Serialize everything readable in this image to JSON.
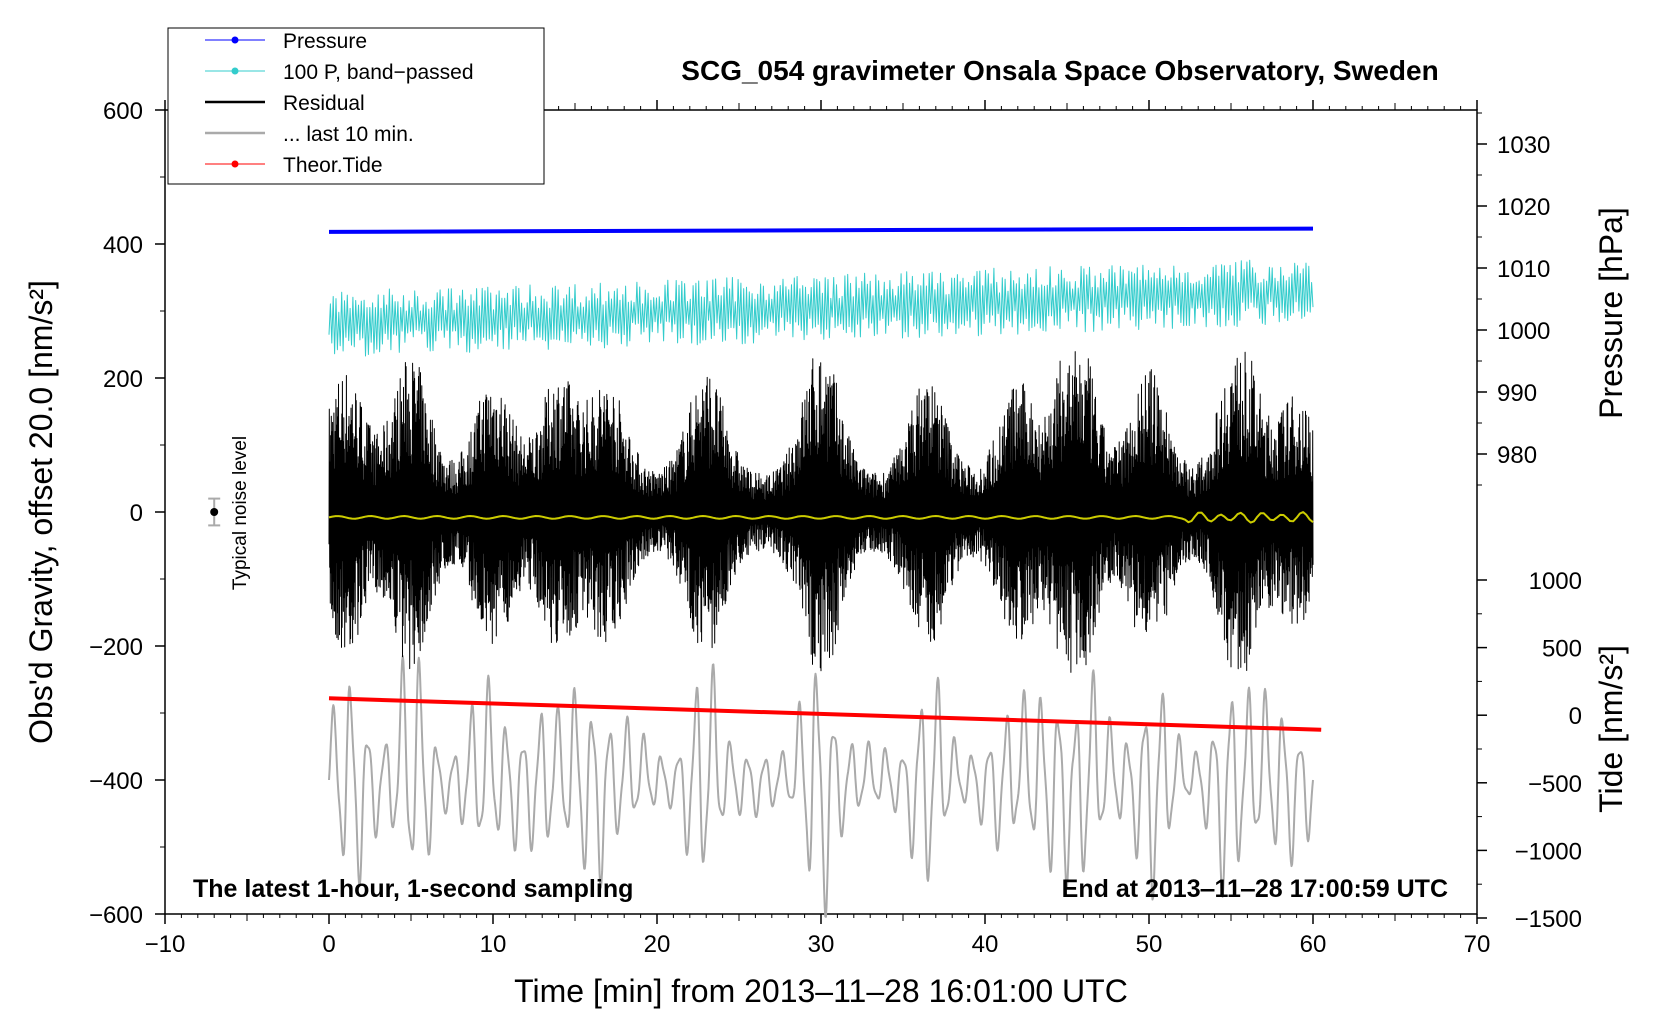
{
  "chart_data": {
    "type": "line",
    "title": "SCG_054 gravimeter Onsala Space Observatory, Sweden",
    "xlabel": "Time [min] from 2013‒11‒28 16:01:00 UTC",
    "ylabel_left": "Obs'd Gravity, offset 20.0 [nm/s²]",
    "ylabel_right_top": "Pressure [hPa]",
    "ylabel_right_bottom": "Tide [nm/s²]",
    "xlim": [
      -10,
      70
    ],
    "ylim_left": [
      -600,
      600
    ],
    "x_ticks": [
      "−10",
      "0",
      "10",
      "20",
      "30",
      "40",
      "50",
      "60",
      "70"
    ],
    "y_ticks_left": [
      "600",
      "400",
      "200",
      "0",
      "−200",
      "−400",
      "−600"
    ],
    "y_ticks_right_pressure": [
      "1030",
      "1020",
      "1010",
      "1000",
      "990",
      "980"
    ],
    "y_ticks_right_tide": [
      "1000",
      "500",
      "0",
      "−500",
      "−1000",
      "−1500"
    ],
    "note_left": "The latest 1‑hour, 1‑second sampling",
    "note_right": "End at 2013‒11‒28 17:00:59 UTC",
    "noise_label": "Typical noise level",
    "noise_bar": {
      "x": -7,
      "y": 0,
      "err": 20
    },
    "legend": [
      {
        "label": "Pressure",
        "color": "#0000ff",
        "marker": true
      },
      {
        "label": "100 P, band−passed",
        "color": "#33cccc",
        "marker": true
      },
      {
        "label": "Residual",
        "color": "#000000",
        "marker": false
      },
      {
        "label": "... last 10 min.",
        "color": "#aaaaaa",
        "marker": false
      },
      {
        "label": "Theor.Tide",
        "color": "#ff0000",
        "marker": true
      }
    ],
    "series": [
      {
        "name": "Pressure",
        "color": "#0000ff",
        "x_range": [
          0,
          60
        ],
        "y_start": 418,
        "y_end": 423
      },
      {
        "name": "100 P, band−passed",
        "color": "#33cccc",
        "x_range": [
          0,
          60
        ],
        "y_start": 280,
        "y_end": 330,
        "amplitude": 50
      },
      {
        "name": "Residual",
        "color": "#000000",
        "x_range": [
          0,
          60
        ],
        "y_center": 0,
        "amplitude_range": [
          40,
          230
        ]
      },
      {
        "name": "... last 10 min.",
        "color": "#aaaaaa",
        "x_range": [
          0,
          60
        ],
        "y_center": -400,
        "amplitude_range": [
          40,
          230
        ]
      },
      {
        "name": "Theor.Tide",
        "color": "#ff0000",
        "x_range": [
          0,
          60.5
        ],
        "y_start": -278,
        "y_end": -325
      }
    ],
    "smoothed_residual_color": "#cccc00"
  }
}
